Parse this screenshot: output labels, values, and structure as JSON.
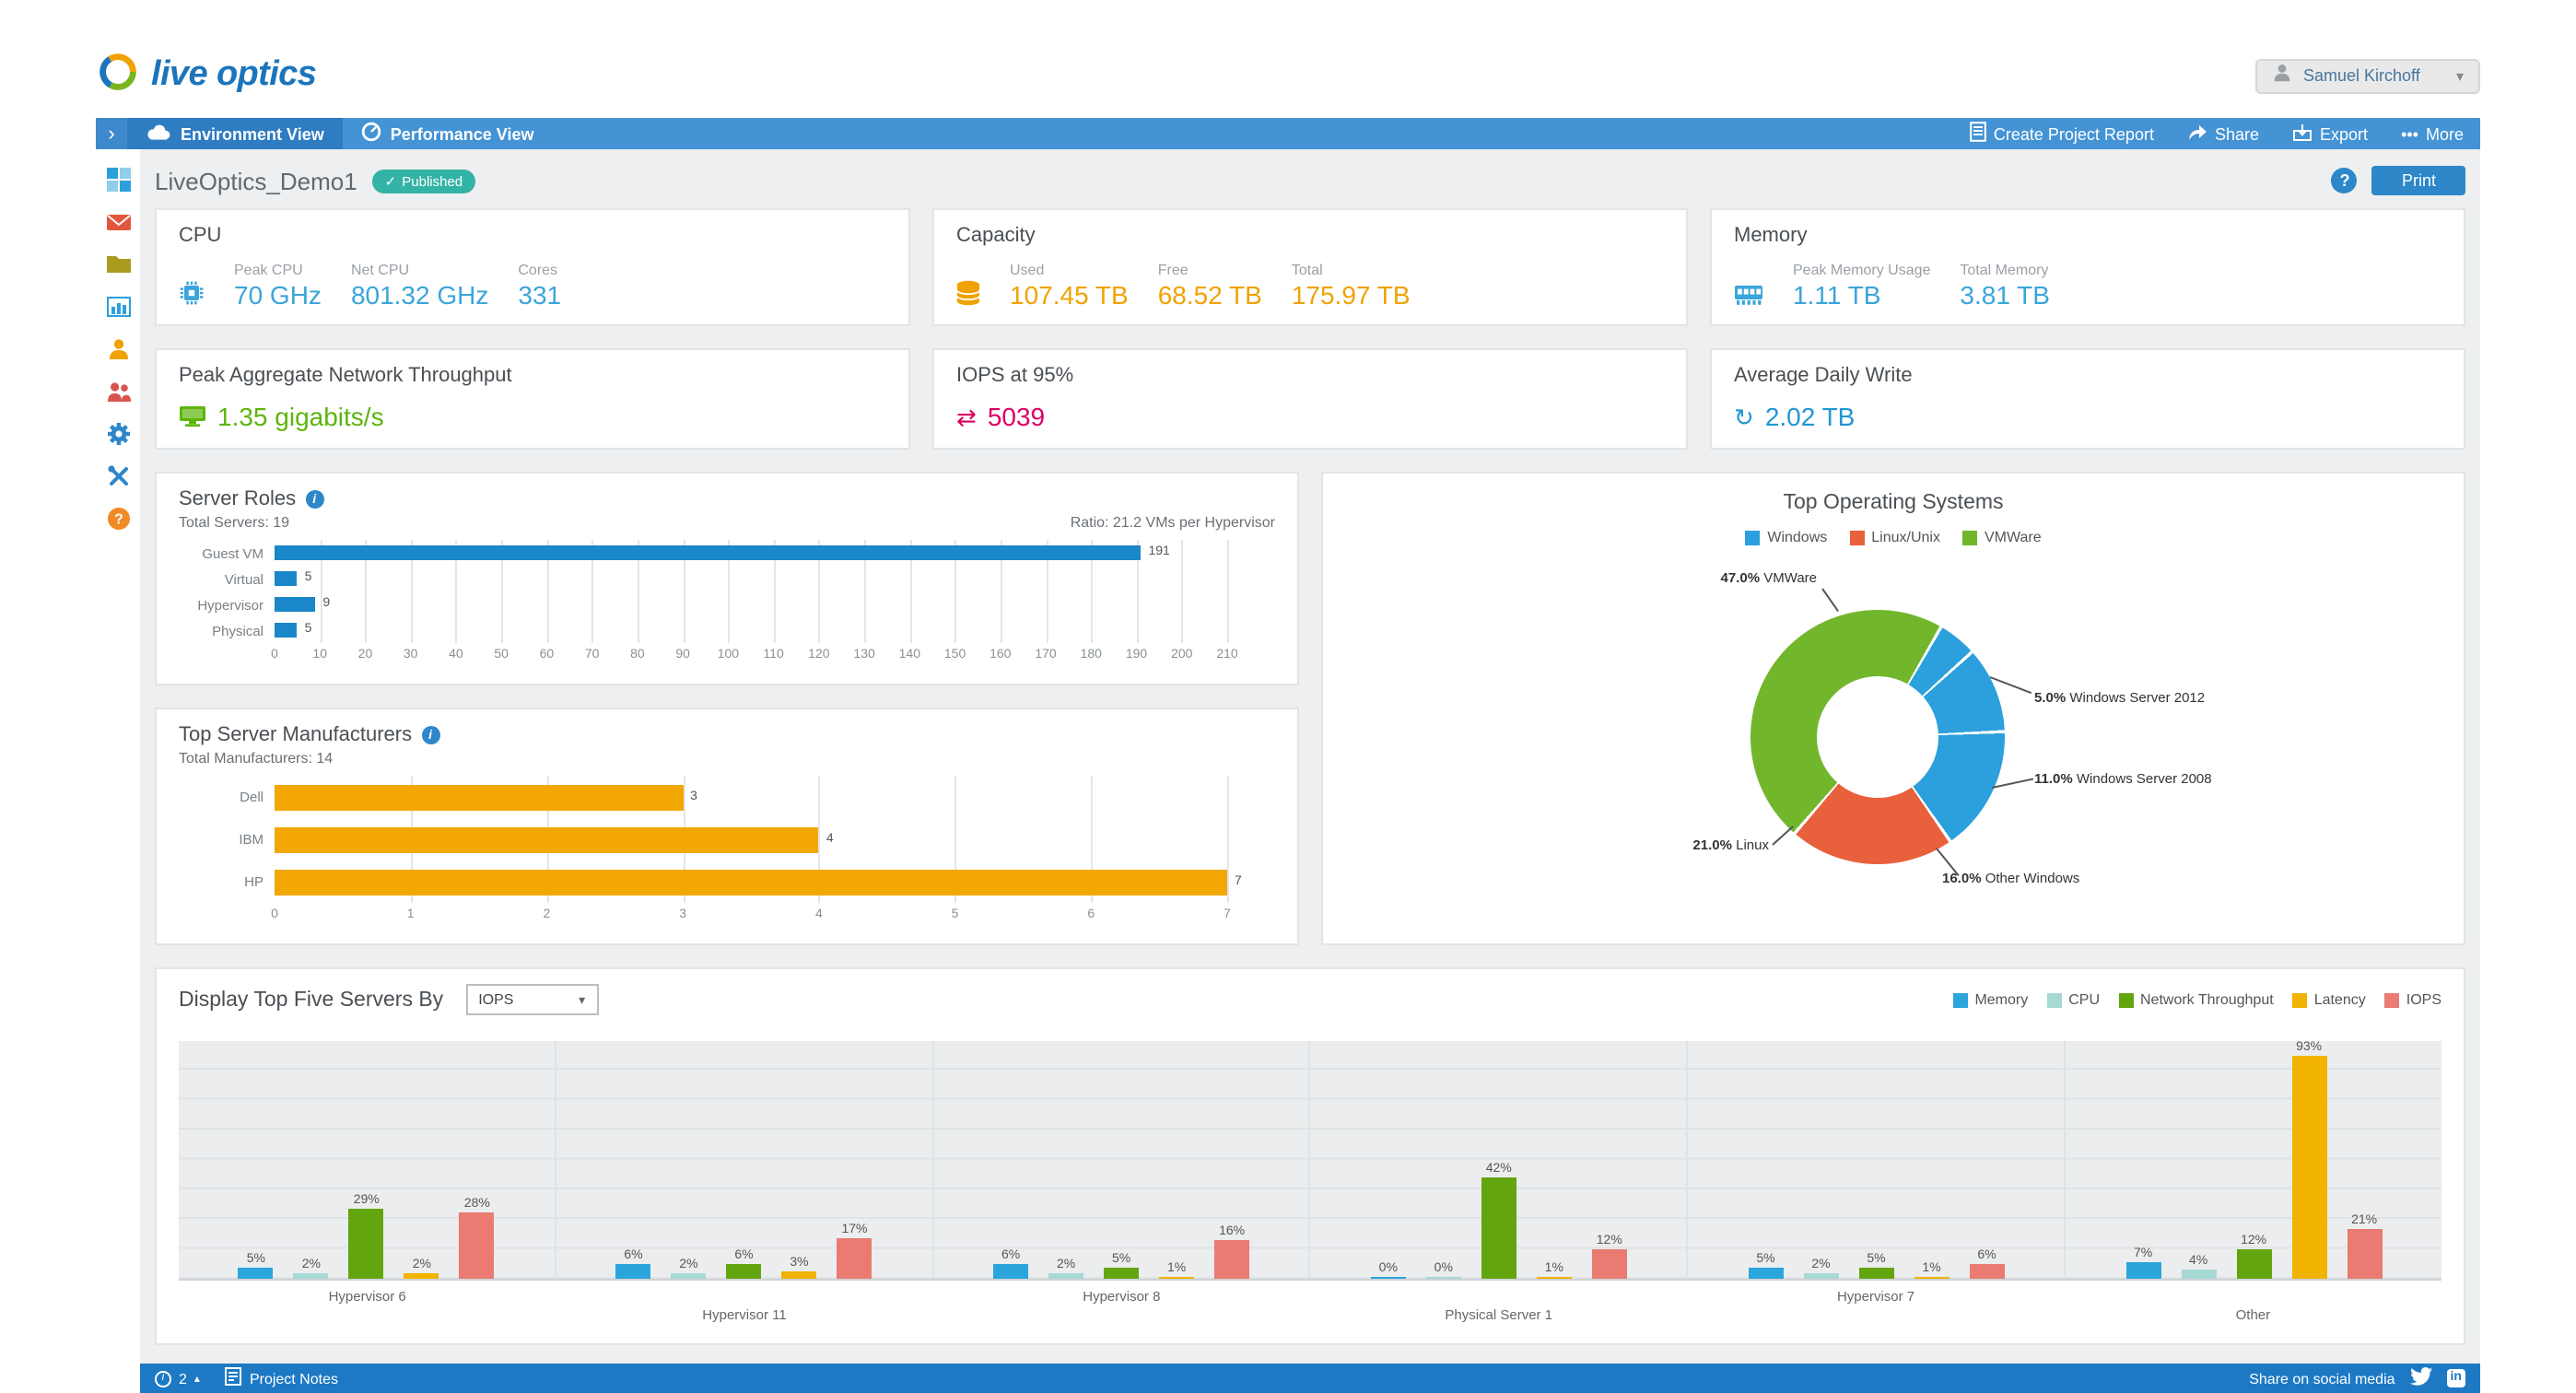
{
  "icons": {
    "caret_down": "▾",
    "caret_up": "▴",
    "collapse_arrow": "›",
    "more_dots": "•••",
    "check": "✓",
    "question_mark": "?",
    "info_i": "i",
    "iops_arrows": "⇄",
    "write_arrow": "↻"
  },
  "brand": {
    "logo_text": "live optics"
  },
  "user": {
    "name": "Samuel Kirchoff"
  },
  "nav": {
    "tabs": [
      {
        "label": "Environment View"
      },
      {
        "label": "Performance View"
      }
    ],
    "actions": [
      {
        "label": "Create Project Report"
      },
      {
        "label": "Share"
      },
      {
        "label": "Export"
      },
      {
        "label": "More"
      }
    ]
  },
  "page": {
    "title": "LiveOptics_Demo1",
    "status_badge": "Published",
    "print_label": "Print"
  },
  "cards": {
    "cpu": {
      "title": "CPU",
      "metrics": [
        {
          "label": "Peak CPU",
          "value": "70 GHz"
        },
        {
          "label": "Net CPU",
          "value": "801.32 GHz"
        },
        {
          "label": "Cores",
          "value": "331"
        }
      ]
    },
    "capacity": {
      "title": "Capacity",
      "metrics": [
        {
          "label": "Used",
          "value": "107.45 TB"
        },
        {
          "label": "Free",
          "value": "68.52 TB"
        },
        {
          "label": "Total",
          "value": "175.97 TB"
        }
      ]
    },
    "memory": {
      "title": "Memory",
      "metrics": [
        {
          "label": "Peak Memory Usage",
          "value": "1.11 TB"
        },
        {
          "label": "Total Memory",
          "value": "3.81 TB"
        }
      ]
    },
    "network": {
      "title": "Peak Aggregate Network Throughput",
      "value": "1.35 gigabits/s"
    },
    "iops": {
      "title": "IOPS at 95%",
      "value": "5039"
    },
    "daily_write": {
      "title": "Average Daily Write",
      "value": "2.02 TB"
    }
  },
  "panels": {
    "server_roles": {
      "title": "Server Roles",
      "total": "Total Servers: 19",
      "ratio": "Ratio: 21.2 VMs per Hypervisor"
    },
    "manufacturers": {
      "title": "Top Server Manufacturers",
      "total": "Total Manufacturers: 14"
    },
    "top_os": {
      "title": "Top Operating Systems"
    },
    "top_servers": {
      "title": "Display Top Five Servers By",
      "selected": "IOPS"
    }
  },
  "footer": {
    "alerts_count": "2",
    "project_notes": "Project Notes",
    "share_text": "Share on social media"
  },
  "chart_data": [
    {
      "id": "server_roles",
      "type": "bar",
      "orientation": "horizontal",
      "title": "Server Roles",
      "categories": [
        "Guest VM",
        "Virtual",
        "Hypervisor",
        "Physical"
      ],
      "values": [
        191,
        5,
        9,
        5
      ],
      "xlim": [
        0,
        210
      ],
      "xticks": [
        0,
        10,
        20,
        30,
        40,
        50,
        60,
        70,
        80,
        90,
        100,
        110,
        120,
        130,
        140,
        150,
        160,
        170,
        180,
        190,
        200,
        210
      ],
      "bar_color": "#1a87c8",
      "grid": true
    },
    {
      "id": "manufacturers",
      "type": "bar",
      "orientation": "horizontal",
      "title": "Top Server Manufacturers",
      "categories": [
        "Dell",
        "IBM",
        "HP"
      ],
      "values": [
        3,
        4,
        7
      ],
      "xlim": [
        0,
        7
      ],
      "xticks": [
        0,
        1,
        2,
        3,
        4,
        5,
        6,
        7
      ],
      "bar_color": "#f2a702",
      "grid": true
    },
    {
      "id": "top_os",
      "type": "pie",
      "donut": true,
      "title": "Top Operating Systems",
      "start_angle_deg": 220,
      "legend": [
        {
          "label": "Windows",
          "color": "#2ba0dc"
        },
        {
          "label": "Linux/Unix",
          "color": "#e8603c"
        },
        {
          "label": "VMWare",
          "color": "#72b62c"
        }
      ],
      "slices": [
        {
          "label": "VMWare",
          "pct": 47.0,
          "color": "#72b62c"
        },
        {
          "label": "Windows Server 2012",
          "pct": 5.0,
          "color": "#2ba0dc"
        },
        {
          "label": "Windows Server 2008",
          "pct": 11.0,
          "color": "#2ba0dc"
        },
        {
          "label": "Other Windows",
          "pct": 16.0,
          "color": "#2ba0dc"
        },
        {
          "label": "Linux",
          "pct": 21.0,
          "color": "#e8603c"
        }
      ]
    },
    {
      "id": "top_servers",
      "type": "bar",
      "grouped": true,
      "unit": "%",
      "ylim": [
        0,
        100
      ],
      "categories": [
        "Hypervisor 6",
        "Hypervisor 11",
        "Hypervisor 8",
        "Physical Server 1",
        "Hypervisor 7",
        "Other"
      ],
      "series": [
        {
          "name": "Memory",
          "color": "#2ba5dc",
          "values": [
            5,
            6,
            6,
            0,
            5,
            7
          ]
        },
        {
          "name": "CPU",
          "color": "#a6d9d4",
          "values": [
            2,
            2,
            2,
            0,
            2,
            4
          ]
        },
        {
          "name": "Network Throughput",
          "color": "#63a50f",
          "values": [
            29,
            6,
            5,
            42,
            5,
            12
          ]
        },
        {
          "name": "Latency",
          "color": "#f2b200",
          "values": [
            2,
            3,
            1,
            1,
            1,
            93
          ]
        },
        {
          "name": "IOPS",
          "color": "#ea7a72",
          "values": [
            28,
            17,
            16,
            12,
            6,
            21
          ]
        }
      ]
    }
  ]
}
